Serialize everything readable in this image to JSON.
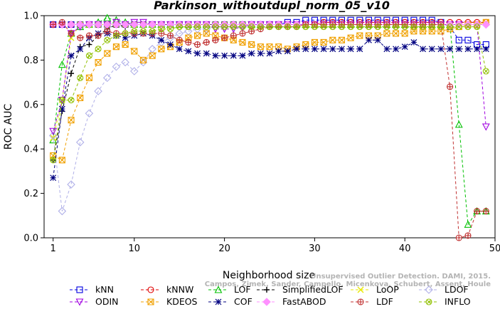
{
  "chart_data": {
    "type": "line",
    "title": "Parkinson_withoutdupl_norm_05_v10",
    "xlabel": "Neighborhood size",
    "ylabel": "ROC AUC",
    "xlim": [
      0,
      50
    ],
    "ylim": [
      0,
      1
    ],
    "xticks": [
      1,
      10,
      20,
      30,
      40,
      50
    ],
    "yticks": [
      0.0,
      0.2,
      0.4,
      0.6,
      0.8,
      1.0
    ],
    "xtick_labels": [
      "1",
      "10",
      "20",
      "30",
      "40",
      "50"
    ],
    "ytick_labels": [
      "0.0",
      "0.2",
      "0.4",
      "0.6",
      "0.8",
      "1.0"
    ],
    "x": [
      1,
      2,
      3,
      4,
      5,
      6,
      7,
      8,
      9,
      10,
      11,
      12,
      13,
      14,
      15,
      16,
      17,
      18,
      19,
      20,
      21,
      22,
      23,
      24,
      25,
      26,
      27,
      28,
      29,
      30,
      31,
      32,
      33,
      34,
      35,
      36,
      37,
      38,
      39,
      40,
      41,
      42,
      43,
      44,
      45,
      46,
      47,
      48,
      49
    ],
    "grid": false,
    "series": [
      {
        "name": "kNN",
        "color": "#0000e0",
        "marker": "square",
        "values": [
          0.96,
          0.96,
          0.96,
          0.96,
          0.96,
          0.96,
          0.96,
          0.96,
          0.96,
          0.96,
          0.96,
          0.96,
          0.96,
          0.96,
          0.96,
          0.96,
          0.96,
          0.96,
          0.96,
          0.96,
          0.96,
          0.96,
          0.96,
          0.96,
          0.96,
          0.96,
          0.97,
          0.97,
          0.98,
          0.98,
          0.98,
          0.98,
          0.98,
          0.98,
          0.98,
          0.98,
          0.98,
          0.98,
          0.98,
          0.98,
          0.98,
          0.98,
          0.98,
          0.97,
          0.95,
          0.89,
          0.89,
          0.87,
          0.87
        ]
      },
      {
        "name": "kNNW",
        "color": "#e00000",
        "marker": "circle",
        "values": [
          0.96,
          0.96,
          0.96,
          0.96,
          0.96,
          0.96,
          0.96,
          0.96,
          0.96,
          0.96,
          0.96,
          0.96,
          0.96,
          0.96,
          0.96,
          0.96,
          0.96,
          0.96,
          0.96,
          0.96,
          0.96,
          0.96,
          0.96,
          0.96,
          0.96,
          0.96,
          0.96,
          0.96,
          0.96,
          0.96,
          0.97,
          0.97,
          0.97,
          0.97,
          0.97,
          0.97,
          0.97,
          0.97,
          0.97,
          0.97,
          0.97,
          0.97,
          0.97,
          0.97,
          0.97,
          0.97,
          0.97,
          0.97,
          0.97
        ]
      },
      {
        "name": "LOF",
        "color": "#00c000",
        "marker": "triangle-up",
        "values": [
          0.44,
          0.78,
          0.92,
          0.95,
          0.96,
          0.97,
          0.99,
          0.98,
          0.97,
          0.96,
          0.96,
          0.96,
          0.96,
          0.96,
          0.96,
          0.96,
          0.96,
          0.96,
          0.96,
          0.96,
          0.96,
          0.96,
          0.96,
          0.96,
          0.96,
          0.96,
          0.96,
          0.96,
          0.96,
          0.96,
          0.96,
          0.96,
          0.96,
          0.96,
          0.96,
          0.96,
          0.96,
          0.96,
          0.96,
          0.96,
          0.96,
          0.96,
          0.96,
          0.96,
          0.96,
          0.51,
          0.06,
          0.12,
          0.12
        ]
      },
      {
        "name": "SimplifiedLOF",
        "color": "#000000",
        "marker": "plus",
        "values": [
          0.35,
          0.57,
          0.74,
          0.86,
          0.87,
          0.91,
          0.94,
          0.96,
          0.95,
          0.96,
          0.96,
          0.96,
          0.96,
          0.96,
          0.96,
          0.96,
          0.96,
          0.96,
          0.96,
          0.96,
          0.96,
          0.96,
          0.96,
          0.96,
          0.96,
          0.96,
          0.96,
          0.96,
          0.96,
          0.96,
          0.96,
          0.96,
          0.96,
          0.96,
          0.96,
          0.96,
          0.96,
          0.96,
          0.96,
          0.96,
          0.96,
          0.96,
          0.96,
          0.96,
          0.96,
          0.96,
          0.96,
          0.96,
          0.96
        ]
      },
      {
        "name": "LoOP",
        "color": "#e8e800",
        "marker": "x",
        "values": [
          0.45,
          0.62,
          0.9,
          0.96,
          0.96,
          0.96,
          0.96,
          0.96,
          0.96,
          0.96,
          0.96,
          0.96,
          0.96,
          0.96,
          0.96,
          0.96,
          0.96,
          0.96,
          0.96,
          0.96,
          0.96,
          0.96,
          0.96,
          0.96,
          0.96,
          0.96,
          0.96,
          0.96,
          0.96,
          0.96,
          0.96,
          0.96,
          0.96,
          0.96,
          0.96,
          0.96,
          0.96,
          0.96,
          0.96,
          0.96,
          0.96,
          0.96,
          0.96,
          0.96,
          0.96,
          0.96,
          0.96,
          0.96,
          0.97
        ]
      },
      {
        "name": "LDOF",
        "color": "#b0b0e8",
        "marker": "diamond",
        "values": [
          0.46,
          0.12,
          0.24,
          0.43,
          0.56,
          0.66,
          0.72,
          0.77,
          0.79,
          0.75,
          0.79,
          0.85,
          0.88,
          0.9,
          0.92,
          0.93,
          0.94,
          0.94,
          0.95,
          0.95,
          0.95,
          0.95,
          0.96,
          0.96,
          0.96,
          0.96,
          0.96,
          0.96,
          0.96,
          0.96,
          0.96,
          0.96,
          0.96,
          0.96,
          0.96,
          0.96,
          0.96,
          0.96,
          0.96,
          0.96,
          0.96,
          0.96,
          0.96,
          0.96,
          0.96,
          0.96,
          0.96,
          0.96,
          0.96
        ]
      },
      {
        "name": "ODIN",
        "color": "#a000e0",
        "marker": "triangle-down",
        "values": [
          0.48,
          0.62,
          0.92,
          0.95,
          0.96,
          0.96,
          0.96,
          0.97,
          0.96,
          0.97,
          0.97,
          0.96,
          0.96,
          0.96,
          0.96,
          0.96,
          0.96,
          0.96,
          0.94,
          0.94,
          0.94,
          0.95,
          0.96,
          0.96,
          0.96,
          0.96,
          0.96,
          0.96,
          0.96,
          0.96,
          0.96,
          0.96,
          0.96,
          0.96,
          0.96,
          0.96,
          0.96,
          0.96,
          0.96,
          0.96,
          0.96,
          0.96,
          0.96,
          0.96,
          0.96,
          0.96,
          0.96,
          0.96,
          0.5
        ]
      },
      {
        "name": "KDEOS",
        "color": "#f0a000",
        "marker": "square-x",
        "values": [
          0.37,
          0.35,
          0.53,
          0.63,
          0.72,
          0.79,
          0.83,
          0.86,
          0.87,
          0.84,
          0.8,
          0.82,
          0.85,
          0.86,
          0.88,
          0.9,
          0.91,
          0.92,
          0.91,
          0.9,
          0.89,
          0.88,
          0.87,
          0.86,
          0.86,
          0.86,
          0.85,
          0.86,
          0.87,
          0.88,
          0.88,
          0.89,
          0.89,
          0.9,
          0.91,
          0.91,
          0.91,
          0.92,
          0.92,
          0.92,
          0.93,
          0.93,
          0.93,
          0.93,
          0.94,
          0.95,
          0.96,
          0.96,
          0.97
        ]
      },
      {
        "name": "COF",
        "color": "#000080",
        "marker": "star",
        "values": [
          0.27,
          0.58,
          0.82,
          0.85,
          0.9,
          0.92,
          0.92,
          0.91,
          0.9,
          0.91,
          0.92,
          0.91,
          0.89,
          0.87,
          0.85,
          0.84,
          0.83,
          0.83,
          0.82,
          0.82,
          0.82,
          0.82,
          0.83,
          0.83,
          0.83,
          0.84,
          0.84,
          0.85,
          0.85,
          0.85,
          0.85,
          0.85,
          0.85,
          0.85,
          0.85,
          0.89,
          0.89,
          0.85,
          0.85,
          0.86,
          0.88,
          0.85,
          0.85,
          0.85,
          0.85,
          0.85,
          0.85,
          0.85,
          0.85
        ]
      },
      {
        "name": "FastABOD",
        "color": "#ff90ff",
        "marker": "diamond-filled",
        "values": [
          0.96,
          0.96,
          0.96,
          0.96,
          0.96,
          0.96,
          0.96,
          0.96,
          0.96,
          0.96,
          0.96,
          0.96,
          0.96,
          0.96,
          0.96,
          0.96,
          0.96,
          0.96,
          0.96,
          0.96,
          0.96,
          0.96,
          0.96,
          0.96,
          0.96,
          0.96,
          0.96,
          0.96,
          0.96,
          0.96,
          0.96,
          0.96,
          0.96,
          0.96,
          0.96,
          0.96,
          0.96,
          0.96,
          0.96,
          0.96,
          0.96,
          0.96,
          0.96,
          0.96,
          0.96,
          0.96,
          0.96,
          0.96,
          0.96
        ]
      },
      {
        "name": "LDF",
        "color": "#c03030",
        "marker": "circle-plus",
        "values": [
          0.96,
          0.97,
          0.92,
          0.9,
          0.91,
          0.91,
          0.93,
          0.92,
          0.92,
          0.92,
          0.92,
          0.92,
          0.92,
          0.91,
          0.89,
          0.88,
          0.87,
          0.88,
          0.89,
          0.9,
          0.91,
          0.92,
          0.93,
          0.94,
          0.95,
          0.95,
          0.95,
          0.95,
          0.96,
          0.96,
          0.96,
          0.96,
          0.96,
          0.96,
          0.96,
          0.96,
          0.96,
          0.96,
          0.96,
          0.96,
          0.96,
          0.96,
          0.96,
          0.96,
          0.68,
          0.0,
          0.01,
          0.12,
          0.12
        ]
      },
      {
        "name": "INFLO",
        "color": "#90c000",
        "marker": "circle-x",
        "values": [
          0.35,
          0.62,
          0.62,
          0.72,
          0.82,
          0.85,
          0.89,
          0.91,
          0.92,
          0.93,
          0.93,
          0.93,
          0.94,
          0.94,
          0.95,
          0.95,
          0.95,
          0.95,
          0.95,
          0.95,
          0.95,
          0.95,
          0.95,
          0.95,
          0.95,
          0.95,
          0.95,
          0.95,
          0.95,
          0.95,
          0.95,
          0.95,
          0.95,
          0.95,
          0.95,
          0.95,
          0.95,
          0.95,
          0.95,
          0.95,
          0.95,
          0.95,
          0.95,
          0.95,
          0.95,
          0.95,
          0.95,
          0.95,
          0.75
        ]
      }
    ],
    "legend_position": "bottom",
    "legend_rows": [
      [
        "kNN",
        "kNNW",
        "LOF",
        "SimplifiedLOF",
        "LoOP",
        "LDOF"
      ],
      [
        "ODIN",
        "KDEOS",
        "COF",
        "FastABOD",
        "LDF",
        "INFLO"
      ]
    ]
  },
  "watermark": {
    "line1": "Unsupervised Outlier Detection. DAMI, 2015.",
    "line2": "Campos, Zimek, Sander, Campello, Micenkova, Schubert, Assent, Houle"
  }
}
